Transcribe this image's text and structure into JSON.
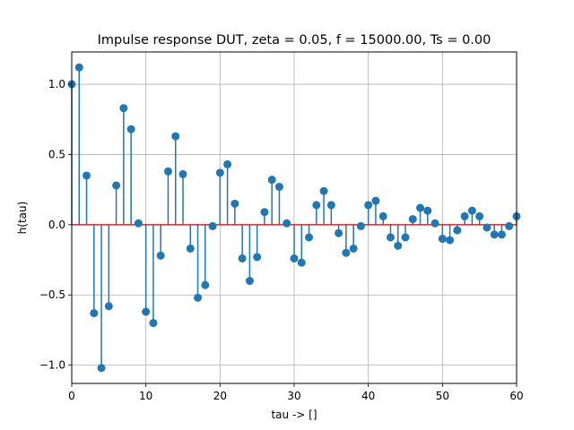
{
  "chart_data": {
    "type": "stem",
    "title": "Impulse response DUT, zeta = 0.05, f = 15000.00, Ts = 0.00",
    "xlabel": "tau -> []",
    "ylabel": "h(tau)",
    "xlim": [
      0,
      60
    ],
    "ylim": [
      -1.13,
      1.23
    ],
    "xticks": [
      0,
      10,
      20,
      30,
      40,
      50,
      60
    ],
    "yticks": [
      -1.0,
      -0.5,
      0.0,
      0.5,
      1.0
    ],
    "xtick_labels": [
      "0",
      "10",
      "20",
      "30",
      "40",
      "50",
      "60"
    ],
    "ytick_labels": [
      "−1.0",
      "−0.5",
      "0.0",
      "0.5",
      "1.0"
    ],
    "grid": true,
    "baseline": 0,
    "colors": {
      "stem": "#1f77b4",
      "baseline": "#d62728",
      "grid": "#b0b0b0"
    },
    "x": [
      0,
      1,
      2,
      3,
      4,
      5,
      6,
      7,
      8,
      9,
      10,
      11,
      12,
      13,
      14,
      15,
      16,
      17,
      18,
      19,
      20,
      21,
      22,
      23,
      24,
      25,
      26,
      27,
      28,
      29,
      30,
      31,
      32,
      33,
      34,
      35,
      36,
      37,
      38,
      39,
      40,
      41,
      42,
      43,
      44,
      45,
      46,
      47,
      48,
      49,
      50,
      51,
      52,
      53,
      54,
      55,
      56,
      57,
      58,
      59,
      60
    ],
    "values": [
      1.0,
      1.12,
      0.35,
      -0.63,
      -1.02,
      -0.58,
      0.28,
      0.83,
      0.68,
      0.01,
      -0.62,
      -0.7,
      -0.22,
      0.38,
      0.63,
      0.36,
      -0.17,
      -0.52,
      -0.43,
      -0.01,
      0.37,
      0.43,
      0.15,
      -0.24,
      -0.4,
      -0.23,
      0.09,
      0.32,
      0.27,
      0.01,
      -0.24,
      -0.27,
      -0.09,
      0.14,
      0.24,
      0.14,
      -0.06,
      -0.2,
      -0.17,
      -0.01,
      0.14,
      0.17,
      0.06,
      -0.09,
      -0.15,
      -0.09,
      0.04,
      0.12,
      0.1,
      0.01,
      -0.1,
      -0.11,
      -0.04,
      0.06,
      0.1,
      0.06,
      -0.02,
      -0.07,
      -0.07,
      -0.01,
      0.06
    ]
  }
}
